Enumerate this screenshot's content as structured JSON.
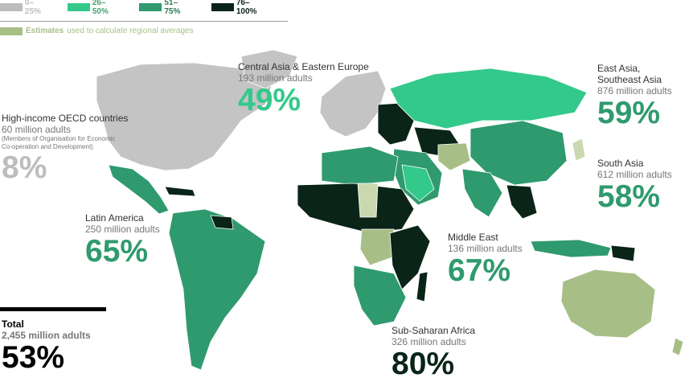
{
  "legend": {
    "bins": [
      {
        "label": "0–25%",
        "color": "#bdbdbd"
      },
      {
        "label": "26–50%",
        "color": "#33c98a"
      },
      {
        "label": "51–75%",
        "color": "#2f9a6e"
      },
      {
        "label": "76–100%",
        "color": "#0a2418"
      }
    ],
    "estimates": {
      "bold": "Estimates",
      "text": "used to calculate regional averages",
      "color": "#a7bf87"
    }
  },
  "regions": {
    "oecd": {
      "name": "High-income OECD countries",
      "sub": "60 million adults",
      "note1": "(Members of Organisation for Economic",
      "note2": "Co-operation and Development)",
      "pct": "8%",
      "color": "#bdbdbd"
    },
    "ceeu": {
      "name": "Central Asia & Eastern Europe",
      "sub": "193 million adults",
      "pct": "49%",
      "color": "#33c98a"
    },
    "eap": {
      "name1": "East Asia,",
      "name2": "Southeast Asia",
      "sub": "876 million adults",
      "pct": "59%",
      "color": "#2f9a6e"
    },
    "sa": {
      "name": "South Asia",
      "sub": "612 million adults",
      "pct": "58%",
      "color": "#2f9a6e"
    },
    "lac": {
      "name": "Latin America",
      "sub": "250 million adults",
      "pct": "65%",
      "color": "#2f9a6e"
    },
    "me": {
      "name": "Middle East",
      "sub": "136 million adults",
      "pct": "67%",
      "color": "#2f9a6e"
    },
    "ssa": {
      "name": "Sub-Saharan Africa",
      "sub": "326 million adults",
      "pct": "80%",
      "color": "#0a2418"
    },
    "total": {
      "name": "Total",
      "sub": "2,455 million adults",
      "pct": "53%",
      "color": "#000000"
    }
  }
}
